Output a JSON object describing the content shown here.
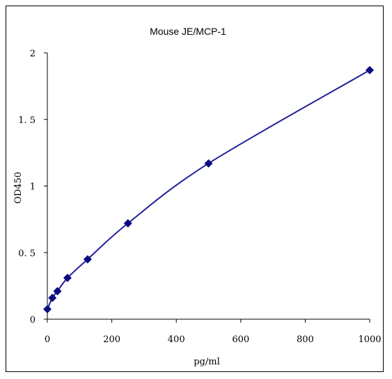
{
  "chart_data": {
    "type": "line",
    "title": "Mouse    JE/MCP-1",
    "xlabel": "pg/ml",
    "ylabel": "OD450",
    "xlim": [
      0,
      1000
    ],
    "ylim": [
      0,
      2
    ],
    "xticks": [
      "0",
      "200",
      "400",
      "600",
      "800",
      "1000"
    ],
    "yticks": [
      "0",
      "0. 5",
      "1",
      "1. 5",
      "2"
    ],
    "grid": false,
    "legend": "none",
    "line_color": "#1f1f9a",
    "marker_color": "#0b0b80",
    "marker": "diamond",
    "series": [
      {
        "x": [
          0,
          15.6,
          31.25,
          62.5,
          125,
          250,
          500,
          1000
        ],
        "y": [
          0.075,
          0.16,
          0.21,
          0.31,
          0.45,
          0.72,
          1.17,
          1.87
        ]
      }
    ]
  }
}
